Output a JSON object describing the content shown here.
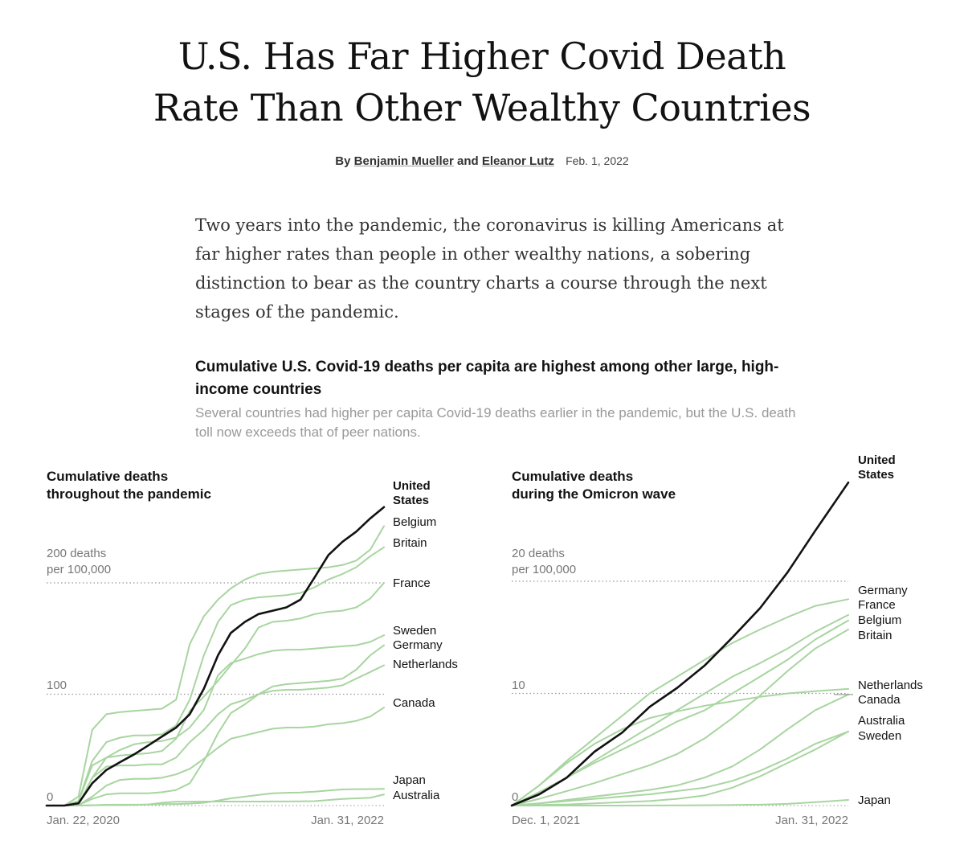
{
  "article": {
    "headline_line1": "U.S. Has Far Higher Covid Death",
    "headline_line2": "Rate Than Other Wealthy Countries",
    "byline_prefix": "By",
    "author1": "Benjamin Mueller",
    "byline_and": "and",
    "author2": "Eleanor Lutz",
    "date": "Feb. 1, 2022",
    "summary": "Two years into the pandemic, the coronavirus is killing Americans at far higher rates than people in other wealthy nations, a sobering distinction to bear as the country charts a course through the next stages of the pandemic."
  },
  "graphic": {
    "title": "Cumulative U.S. Covid-19 deaths per capita are highest among other large, high-income countries",
    "subtitle": "Several countries had higher per capita Covid-19 deaths earlier in the pandemic, but the U.S. death toll now exceeds that of peer nations."
  },
  "colors": {
    "highlight": "#121212",
    "others": "#a8d5a0",
    "gridline": "#999999",
    "axis_text": "#555555"
  },
  "chart_data": [
    {
      "type": "line",
      "panel_title_line1": "Cumulative deaths",
      "panel_title_line2": "throughout the pandemic",
      "ylabel_line1": "200 deaths",
      "ylabel_line2": "per 100,000",
      "yticks": [
        {
          "value": 0,
          "label": "0"
        },
        {
          "value": 100,
          "label": "100"
        },
        {
          "value": 200,
          "label": "200 deaths"
        }
      ],
      "ylim": [
        0,
        265
      ],
      "xlim": [
        "2020-01-22",
        "2022-01-31"
      ],
      "x_tick_labels": [
        "Jan. 22, 2020",
        "Jan. 31, 2022"
      ],
      "grid": "dotted horizontal lines at 100 and 200",
      "x": [
        "2020-01-22",
        "2020-03-01",
        "2020-04-01",
        "2020-05-01",
        "2020-06-01",
        "2020-07-01",
        "2020-08-01",
        "2020-09-01",
        "2020-10-01",
        "2020-11-01",
        "2020-12-01",
        "2021-01-01",
        "2021-02-01",
        "2021-03-01",
        "2021-04-01",
        "2021-05-01",
        "2021-06-01",
        "2021-07-01",
        "2021-08-01",
        "2021-09-01",
        "2021-10-01",
        "2021-11-01",
        "2021-12-01",
        "2022-01-01",
        "2022-01-31"
      ],
      "series": [
        {
          "name": "United States",
          "highlight": true,
          "label_line1": "United",
          "label_line2": "States",
          "values": [
            0,
            0,
            2,
            20,
            32,
            39,
            46,
            54,
            62,
            70,
            82,
            105,
            135,
            155,
            165,
            172,
            175,
            178,
            185,
            205,
            225,
            237,
            246,
            258,
            268
          ]
        },
        {
          "name": "Belgium",
          "values": [
            0,
            0,
            8,
            68,
            82,
            84,
            85,
            86,
            87,
            95,
            145,
            170,
            185,
            195,
            203,
            208,
            210,
            211,
            212,
            213,
            214,
            216,
            220,
            230,
            251
          ]
        },
        {
          "name": "Britain",
          "values": [
            0,
            0,
            4,
            40,
            57,
            61,
            63,
            63,
            64,
            72,
            95,
            135,
            165,
            180,
            185,
            187,
            188,
            189,
            191,
            196,
            203,
            208,
            214,
            224,
            232
          ]
        },
        {
          "name": "France",
          "values": [
            0,
            0,
            4,
            36,
            43,
            45,
            46,
            47,
            49,
            60,
            85,
            98,
            112,
            126,
            141,
            160,
            165,
            166,
            168,
            172,
            174,
            175,
            178,
            186,
            200
          ]
        },
        {
          "name": "Sweden",
          "values": [
            0,
            0,
            1,
            25,
            43,
            50,
            55,
            57,
            58,
            61,
            70,
            86,
            117,
            128,
            132,
            136,
            139,
            140,
            140,
            141,
            142,
            143,
            144,
            147,
            153
          ]
        },
        {
          "name": "Germany",
          "values": [
            0,
            0,
            0.5,
            6,
            10,
            11,
            11,
            11,
            12,
            14,
            20,
            40,
            65,
            83,
            91,
            100,
            107,
            109,
            110,
            111,
            112,
            114,
            122,
            135,
            144
          ]
        },
        {
          "name": "Netherlands",
          "values": [
            0,
            0,
            1,
            25,
            35,
            36,
            36,
            37,
            37,
            43,
            57,
            68,
            82,
            91,
            95,
            100,
            103,
            104,
            104,
            105,
            106,
            108,
            114,
            120,
            126
          ]
        },
        {
          "name": "Canada",
          "values": [
            0,
            0,
            0.5,
            8,
            18,
            23,
            24,
            24,
            25,
            28,
            33,
            42,
            52,
            60,
            63,
            66,
            69,
            70,
            70,
            71,
            73,
            74,
            76,
            80,
            88
          ]
        },
        {
          "name": "Japan",
          "values": [
            0,
            0,
            0,
            0.3,
            0.7,
            0.8,
            0.8,
            0.9,
            1.2,
            1.4,
            1.7,
            2.5,
            4.5,
            6.5,
            8,
            9.5,
            11,
            11.5,
            11.8,
            12.5,
            13.5,
            14.5,
            14.7,
            14.8,
            15
          ]
        },
        {
          "name": "Australia",
          "values": [
            0,
            0,
            0,
            0.3,
            0.4,
            0.4,
            0.5,
            1,
            2.5,
            3.5,
            3.5,
            3.6,
            3.6,
            3.6,
            3.6,
            3.6,
            3.7,
            3.7,
            3.8,
            4,
            5,
            6,
            6.5,
            7,
            10
          ]
        }
      ]
    },
    {
      "type": "line",
      "panel_title_line1": "Cumulative deaths",
      "panel_title_line2": "during the Omicron wave",
      "ylabel_line1": "20 deaths",
      "ylabel_line2": "per 100,000",
      "yticks": [
        {
          "value": 0,
          "label": "0"
        },
        {
          "value": 10,
          "label": "10"
        },
        {
          "value": 20,
          "label": "20 deaths"
        }
      ],
      "ylim": [
        0,
        30
      ],
      "xlim": [
        "2021-12-01",
        "2022-01-31"
      ],
      "x_tick_labels": [
        "Dec. 1, 2021",
        "Jan. 31, 2022"
      ],
      "grid": "dotted horizontal lines at 10 and 20",
      "x": [
        "2021-12-01",
        "2021-12-06",
        "2021-12-11",
        "2021-12-16",
        "2021-12-21",
        "2021-12-26",
        "2021-12-31",
        "2022-01-05",
        "2022-01-10",
        "2022-01-15",
        "2022-01-20",
        "2022-01-25",
        "2022-01-31"
      ],
      "series": [
        {
          "name": "United States",
          "highlight": true,
          "label_line1": "United",
          "label_line2": "States",
          "values": [
            0,
            1,
            2.5,
            4.8,
            6.5,
            8.8,
            10.5,
            12.5,
            15,
            17.6,
            20.8,
            24.5,
            28.8
          ]
        },
        {
          "name": "Germany",
          "values": [
            0,
            1.8,
            4,
            6,
            8,
            10,
            11.5,
            13,
            14.5,
            15.7,
            16.8,
            17.8,
            18.4
          ]
        },
        {
          "name": "France",
          "values": [
            0,
            1.2,
            2.5,
            4,
            5.5,
            7,
            8.5,
            10,
            11.5,
            12.7,
            14,
            15.5,
            17
          ]
        },
        {
          "name": "Belgium",
          "values": [
            0,
            1.2,
            2.5,
            3.8,
            5,
            6.2,
            7.5,
            8.5,
            10,
            11.5,
            13,
            14.8,
            16.5
          ]
        },
        {
          "name": "Britain",
          "values": [
            0,
            0.6,
            1.3,
            2,
            2.8,
            3.6,
            4.6,
            6,
            7.8,
            9.8,
            12,
            14,
            15.7
          ]
        },
        {
          "name": "Netherlands",
          "values": [
            0,
            1.8,
            3.8,
            5.5,
            6.8,
            7.8,
            8.4,
            8.9,
            9.3,
            9.7,
            10,
            10.2,
            10.4
          ]
        },
        {
          "name": "Canada",
          "values": [
            0,
            0.2,
            0.5,
            0.8,
            1.1,
            1.4,
            1.8,
            2.5,
            3.5,
            5,
            6.8,
            8.5,
            9.9
          ]
        },
        {
          "name": "Australia",
          "values": [
            0,
            0.05,
            0.1,
            0.2,
            0.3,
            0.4,
            0.6,
            0.9,
            1.6,
            2.6,
            3.8,
            5,
            6.6
          ]
        },
        {
          "name": "Sweden",
          "values": [
            0,
            0.2,
            0.4,
            0.6,
            0.8,
            1,
            1.3,
            1.6,
            2.2,
            3.1,
            4.2,
            5.5,
            6.6
          ]
        },
        {
          "name": "Japan",
          "values": [
            0,
            0,
            0,
            0,
            0,
            0.01,
            0.02,
            0.03,
            0.05,
            0.08,
            0.15,
            0.3,
            0.5
          ]
        }
      ]
    }
  ],
  "panels_labels": [
    [
      {
        "series": "United States",
        "lines": [
          "United",
          "States"
        ],
        "bold": true
      },
      {
        "series": "Belgium",
        "lines": [
          "Belgium"
        ]
      },
      {
        "series": "Britain",
        "lines": [
          "Britain"
        ]
      },
      {
        "series": "France",
        "lines": [
          "France"
        ]
      },
      {
        "series": "Sweden",
        "lines": [
          "Sweden"
        ]
      },
      {
        "series": "Germany",
        "lines": [
          "Germany"
        ]
      },
      {
        "series": "Netherlands",
        "lines": [
          "Netherlands"
        ]
      },
      {
        "series": "Canada",
        "lines": [
          "Canada"
        ]
      },
      {
        "series": "Japan",
        "lines": [
          "Japan"
        ]
      },
      {
        "series": "Australia",
        "lines": [
          "Australia"
        ]
      }
    ],
    [
      {
        "series": "United States",
        "lines": [
          "United",
          "States"
        ],
        "bold": true
      },
      {
        "series": "Germany",
        "lines": [
          "Germany"
        ]
      },
      {
        "series": "France",
        "lines": [
          "France"
        ]
      },
      {
        "series": "Belgium",
        "lines": [
          "Belgium"
        ]
      },
      {
        "series": "Britain",
        "lines": [
          "Britain"
        ]
      },
      {
        "series": "Netherlands",
        "lines": [
          "Netherlands"
        ]
      },
      {
        "series": "Canada",
        "lines": [
          "Canada"
        ]
      },
      {
        "series": "Australia",
        "lines": [
          "Australia"
        ]
      },
      {
        "series": "Sweden",
        "lines": [
          "Sweden"
        ]
      },
      {
        "series": "Japan",
        "lines": [
          "Japan"
        ]
      }
    ]
  ]
}
